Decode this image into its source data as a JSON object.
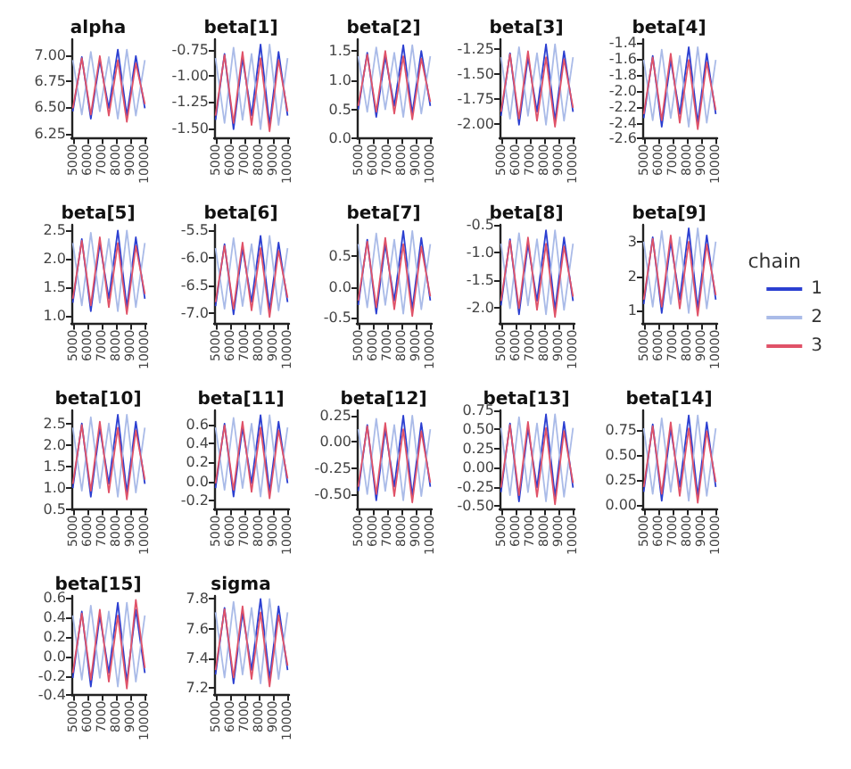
{
  "chart_data": [
    {
      "type": "line",
      "title": "alpha",
      "x": [
        5000,
        5625,
        6250,
        6875,
        7500,
        8125,
        8750,
        9375,
        10000
      ],
      "xlim": [
        4900,
        10100
      ],
      "xticks": [
        5000,
        6000,
        7000,
        8000,
        9000,
        10000
      ],
      "ylim": [
        6.2,
        7.15
      ],
      "yticks": [
        6.25,
        {
          "value": 6.5,
          "label": "6.50"
        },
        6.75,
        {
          "value": 7,
          "label": "7.00"
        }
      ],
      "grid": false,
      "legend": false,
      "series": [
        {
          "color": "#2b3fd1",
          "values": [
            6.46,
            6.98,
            6.39,
            6.95,
            6.49,
            7.05,
            6.42,
            6.99,
            6.49
          ]
        },
        {
          "color": "#aabbe8",
          "values": [
            6.95,
            6.43,
            7.03,
            6.46,
            6.98,
            6.39,
            7.05,
            6.42,
            6.95
          ]
        },
        {
          "color": "#e05268",
          "values": [
            6.49,
            6.97,
            6.43,
            6.99,
            6.42,
            6.95,
            6.36,
            6.92,
            6.53
          ]
        }
      ]
    },
    {
      "type": "line",
      "title": "beta[1]",
      "x": [
        5000,
        5625,
        6250,
        6875,
        7500,
        8125,
        8750,
        9375,
        10000
      ],
      "xlim": [
        4900,
        10100
      ],
      "xticks": [
        5000,
        6000,
        7000,
        8000,
        9000,
        10000
      ],
      "ylim": [
        -1.6,
        -0.65
      ],
      "yticks": [
        {
          "value": -1.5,
          "label": "-1.50"
        },
        -1.25,
        {
          "value": -1,
          "label": "-1.00"
        },
        -0.75
      ],
      "grid": false,
      "legend": false,
      "series": [
        {
          "color": "#2b3fd1",
          "values": [
            -1.42,
            -0.79,
            -1.51,
            -0.83,
            -1.38,
            -0.7,
            -1.47,
            -0.77,
            -1.38
          ]
        },
        {
          "color": "#aabbe8",
          "values": [
            -0.83,
            -1.45,
            -0.73,
            -1.42,
            -0.79,
            -1.51,
            -0.7,
            -1.47,
            -0.83
          ]
        },
        {
          "color": "#e05268",
          "values": [
            -1.38,
            -0.8,
            -1.45,
            -0.77,
            -1.47,
            -0.83,
            -1.53,
            -0.85,
            -1.34
          ]
        }
      ]
    },
    {
      "type": "line",
      "title": "beta[2]",
      "x": [
        5000,
        5625,
        6250,
        6875,
        7500,
        8125,
        8750,
        9375,
        10000
      ],
      "xlim": [
        4900,
        10100
      ],
      "xticks": [
        5000,
        6000,
        7000,
        8000,
        9000,
        10000
      ],
      "ylim": [
        0,
        1.7
      ],
      "yticks": [
        {
          "value": 0,
          "label": "0.0"
        },
        0.5,
        {
          "value": 1,
          "label": "1.0"
        },
        1.5
      ],
      "grid": false,
      "legend": false,
      "series": [
        {
          "color": "#2b3fd1",
          "values": [
            0.5,
            1.47,
            0.37,
            1.41,
            0.56,
            1.6,
            0.43,
            1.5,
            0.56
          ]
        },
        {
          "color": "#aabbe8",
          "values": [
            1.41,
            0.46,
            1.56,
            0.5,
            1.47,
            0.37,
            1.6,
            0.43,
            1.41
          ]
        },
        {
          "color": "#e05268",
          "values": [
            0.56,
            1.44,
            0.46,
            1.5,
            0.43,
            1.41,
            0.33,
            1.37,
            0.63
          ]
        }
      ]
    },
    {
      "type": "line",
      "title": "beta[3]",
      "x": [
        5000,
        5625,
        6250,
        6875,
        7500,
        8125,
        8750,
        9375,
        10000
      ],
      "xlim": [
        4900,
        10100
      ],
      "xticks": [
        5000,
        6000,
        7000,
        8000,
        9000,
        10000
      ],
      "ylim": [
        -2.15,
        -1.15
      ],
      "yticks": [
        {
          "value": -2,
          "label": "-2.00"
        },
        -1.75,
        {
          "value": -1.5,
          "label": "-1.50"
        },
        -1.25
      ],
      "grid": false,
      "legend": false,
      "series": [
        {
          "color": "#2b3fd1",
          "values": [
            -1.92,
            -1.29,
            -2.01,
            -1.33,
            -1.88,
            -1.2,
            -1.97,
            -1.27,
            -1.88
          ]
        },
        {
          "color": "#aabbe8",
          "values": [
            -1.33,
            -1.95,
            -1.23,
            -1.92,
            -1.29,
            -2.01,
            -1.2,
            -1.97,
            -1.33
          ]
        },
        {
          "color": "#e05268",
          "values": [
            -1.88,
            -1.3,
            -1.95,
            -1.27,
            -1.97,
            -1.33,
            -2.03,
            -1.35,
            -1.84
          ]
        }
      ]
    },
    {
      "type": "line",
      "title": "beta[4]",
      "x": [
        5000,
        5625,
        6250,
        6875,
        7500,
        8125,
        8750,
        9375,
        10000
      ],
      "xlim": [
        4900,
        10100
      ],
      "xticks": [
        5000,
        6000,
        7000,
        8000,
        9000,
        10000
      ],
      "ylim": [
        -2.6,
        -1.35
      ],
      "yticks": [
        -2.6,
        -2.4,
        -2.2,
        {
          "value": -2,
          "label": "-2.0"
        },
        -1.8,
        -1.6,
        -1.4
      ],
      "grid": false,
      "legend": false,
      "series": [
        {
          "color": "#2b3fd1",
          "values": [
            -2.34,
            -1.56,
            -2.45,
            -1.61,
            -2.29,
            -1.45,
            -2.4,
            -1.53,
            -2.29
          ]
        },
        {
          "color": "#aabbe8",
          "values": [
            -1.61,
            -2.37,
            -1.48,
            -2.34,
            -1.56,
            -2.45,
            -1.45,
            -2.4,
            -1.61
          ]
        },
        {
          "color": "#e05268",
          "values": [
            -2.29,
            -1.58,
            -2.37,
            -1.53,
            -2.4,
            -1.61,
            -2.48,
            -1.64,
            -2.24
          ]
        }
      ]
    },
    {
      "type": "line",
      "title": "beta[5]",
      "x": [
        5000,
        5625,
        6250,
        6875,
        7500,
        8125,
        8750,
        9375,
        10000
      ],
      "xlim": [
        4900,
        10100
      ],
      "xticks": [
        5000,
        6000,
        7000,
        8000,
        9000,
        10000
      ],
      "ylim": [
        0.85,
        2.6
      ],
      "yticks": [
        {
          "value": 1,
          "label": "1.0"
        },
        1.5,
        {
          "value": 2,
          "label": "2.0"
        },
        2.5
      ],
      "grid": false,
      "legend": false,
      "series": [
        {
          "color": "#2b3fd1",
          "values": [
            1.23,
            2.35,
            1.08,
            2.28,
            1.3,
            2.5,
            1.15,
            2.38,
            1.3
          ]
        },
        {
          "color": "#aabbe8",
          "values": [
            2.28,
            1.18,
            2.46,
            1.23,
            2.35,
            1.08,
            2.5,
            1.15,
            2.28
          ]
        },
        {
          "color": "#e05268",
          "values": [
            1.3,
            2.32,
            1.18,
            2.38,
            1.15,
            2.28,
            1.03,
            2.23,
            1.38
          ]
        }
      ]
    },
    {
      "type": "line",
      "title": "beta[6]",
      "x": [
        5000,
        5625,
        6250,
        6875,
        7500,
        8125,
        8750,
        9375,
        10000
      ],
      "xlim": [
        4900,
        10100
      ],
      "xticks": [
        5000,
        6000,
        7000,
        8000,
        9000,
        10000
      ],
      "ylim": [
        -7.2,
        -5.4
      ],
      "yticks": [
        {
          "value": -7,
          "label": "-7.0"
        },
        -6.5,
        {
          "value": -6,
          "label": "-6.0"
        },
        -5.5
      ],
      "grid": false,
      "legend": false,
      "series": [
        {
          "color": "#2b3fd1",
          "values": [
            -6.87,
            -5.75,
            -7.02,
            -5.82,
            -6.8,
            -5.6,
            -6.95,
            -5.72,
            -6.8
          ]
        },
        {
          "color": "#aabbe8",
          "values": [
            -5.82,
            -6.92,
            -5.64,
            -6.87,
            -5.75,
            -7.02,
            -5.6,
            -6.95,
            -5.82
          ]
        },
        {
          "color": "#e05268",
          "values": [
            -6.8,
            -5.78,
            -6.92,
            -5.72,
            -6.95,
            -5.82,
            -7.07,
            -5.87,
            -6.72
          ]
        }
      ]
    },
    {
      "type": "line",
      "title": "beta[7]",
      "x": [
        5000,
        5625,
        6250,
        6875,
        7500,
        8125,
        8750,
        9375,
        10000
      ],
      "xlim": [
        4900,
        10100
      ],
      "xticks": [
        5000,
        6000,
        7000,
        8000,
        9000,
        10000
      ],
      "ylim": [
        -0.6,
        1.0
      ],
      "yticks": [
        -0.5,
        {
          "value": 0,
          "label": "0.0"
        },
        0.5
      ],
      "grid": false,
      "legend": false,
      "series": [
        {
          "color": "#2b3fd1",
          "values": [
            -0.29,
            0.76,
            -0.43,
            0.69,
            -0.22,
            0.9,
            -0.36,
            0.79,
            -0.22
          ]
        },
        {
          "color": "#aabbe8",
          "values": [
            0.69,
            -0.33,
            0.86,
            -0.29,
            0.76,
            -0.43,
            0.9,
            -0.36,
            0.69
          ]
        },
        {
          "color": "#e05268",
          "values": [
            -0.22,
            0.73,
            -0.33,
            0.79,
            -0.36,
            0.69,
            -0.47,
            0.65,
            -0.15
          ]
        }
      ]
    },
    {
      "type": "line",
      "title": "beta[8]",
      "x": [
        5000,
        5625,
        6250,
        6875,
        7500,
        8125,
        8750,
        9375,
        10000
      ],
      "xlim": [
        4900,
        10100
      ],
      "xticks": [
        5000,
        6000,
        7000,
        8000,
        9000,
        10000
      ],
      "ylim": [
        -2.3,
        -0.5
      ],
      "yticks": [
        {
          "value": -2,
          "label": "-2.0"
        },
        -1.5,
        {
          "value": -1,
          "label": "-1.0"
        },
        -0.5
      ],
      "grid": false,
      "legend": false,
      "series": [
        {
          "color": "#2b3fd1",
          "values": [
            -1.96,
            -0.76,
            -2.12,
            -0.84,
            -1.88,
            -0.6,
            -2.04,
            -0.73,
            -1.88
          ]
        },
        {
          "color": "#aabbe8",
          "values": [
            -0.84,
            -2.01,
            -0.65,
            -1.96,
            -0.76,
            -2.12,
            -0.6,
            -2.04,
            -0.84
          ]
        },
        {
          "color": "#e05268",
          "values": [
            -1.88,
            -0.79,
            -2.01,
            -0.73,
            -2.04,
            -0.84,
            -2.17,
            -0.89,
            -1.8
          ]
        }
      ]
    },
    {
      "type": "line",
      "title": "beta[9]",
      "x": [
        5000,
        5625,
        6250,
        6875,
        7500,
        8125,
        8750,
        9375,
        10000
      ],
      "xlim": [
        4900,
        10100
      ],
      "xticks": [
        5000,
        6000,
        7000,
        8000,
        9000,
        10000
      ],
      "ylim": [
        0.6,
        3.5
      ],
      "yticks": [
        1,
        2,
        3
      ],
      "grid": false,
      "legend": "right",
      "legend_title": "chain",
      "series": [
        {
          "name": "1",
          "color": "#2b3fd1",
          "values": [
            1.19,
            3.14,
            0.93,
            3.01,
            1.32,
            3.4,
            1.06,
            3.19,
            1.32
          ]
        },
        {
          "name": "2",
          "color": "#aabbe8",
          "values": [
            3.01,
            1.11,
            3.32,
            1.19,
            3.14,
            0.93,
            3.4,
            1.06,
            3.01
          ]
        },
        {
          "name": "3",
          "color": "#e05268",
          "values": [
            1.32,
            3.09,
            1.11,
            3.19,
            1.06,
            3.01,
            0.85,
            2.93,
            1.45
          ]
        }
      ]
    },
    {
      "type": "line",
      "title": "beta[10]",
      "x": [
        5000,
        5625,
        6250,
        6875,
        7500,
        8125,
        8750,
        9375,
        10000
      ],
      "xlim": [
        4900,
        10100
      ],
      "xticks": [
        5000,
        6000,
        7000,
        8000,
        9000,
        10000
      ],
      "ylim": [
        0.5,
        2.8
      ],
      "yticks": [
        0.5,
        {
          "value": 1,
          "label": "1.0"
        },
        1.5,
        {
          "value": 2,
          "label": "2.0"
        },
        2.5
      ],
      "grid": false,
      "legend": false,
      "series": [
        {
          "color": "#2b3fd1",
          "values": [
            1.0,
            2.5,
            0.8,
            2.4,
            1.1,
            2.7,
            0.9,
            2.54,
            1.1
          ]
        },
        {
          "color": "#aabbe8",
          "values": [
            2.4,
            0.94,
            2.64,
            1.0,
            2.5,
            0.8,
            2.7,
            0.9,
            2.4
          ]
        },
        {
          "color": "#e05268",
          "values": [
            1.1,
            2.46,
            0.94,
            2.54,
            0.9,
            2.4,
            0.74,
            2.34,
            1.2
          ]
        }
      ]
    },
    {
      "type": "line",
      "title": "beta[11]",
      "x": [
        5000,
        5625,
        6250,
        6875,
        7500,
        8125,
        8750,
        9375,
        10000
      ],
      "xlim": [
        4900,
        10100
      ],
      "xticks": [
        5000,
        6000,
        7000,
        8000,
        9000,
        10000
      ],
      "ylim": [
        -0.3,
        0.75
      ],
      "yticks": [
        -0.2,
        {
          "value": 0,
          "label": "0.0"
        },
        0.2,
        0.4,
        0.6
      ],
      "grid": false,
      "legend": false,
      "series": [
        {
          "color": "#2b3fd1",
          "values": [
            -0.07,
            0.61,
            -0.16,
            0.57,
            -0.02,
            0.7,
            -0.11,
            0.63,
            -0.02
          ]
        },
        {
          "color": "#aabbe8",
          "values": [
            0.57,
            -0.09,
            0.67,
            -0.07,
            0.61,
            -0.16,
            0.7,
            -0.11,
            0.57
          ]
        },
        {
          "color": "#e05268",
          "values": [
            -0.02,
            0.59,
            -0.09,
            0.63,
            -0.11,
            0.57,
            -0.18,
            0.54,
            0.03
          ]
        }
      ]
    },
    {
      "type": "line",
      "title": "beta[12]",
      "x": [
        5000,
        5625,
        6250,
        6875,
        7500,
        8125,
        8750,
        9375,
        10000
      ],
      "xlim": [
        4900,
        10100
      ],
      "xticks": [
        5000,
        6000,
        7000,
        8000,
        9000,
        10000
      ],
      "ylim": [
        -0.65,
        0.3
      ],
      "yticks": [
        {
          "value": -0.5,
          "label": "-0.50"
        },
        -0.25,
        {
          "value": 0,
          "label": "0.00"
        },
        0.25
      ],
      "grid": false,
      "legend": false,
      "series": [
        {
          "color": "#2b3fd1",
          "values": [
            -0.47,
            0.16,
            -0.56,
            0.12,
            -0.43,
            0.25,
            -0.52,
            0.18,
            -0.43
          ]
        },
        {
          "color": "#aabbe8",
          "values": [
            0.12,
            -0.5,
            0.22,
            -0.47,
            0.16,
            -0.56,
            0.25,
            -0.52,
            0.12
          ]
        },
        {
          "color": "#e05268",
          "values": [
            -0.43,
            0.15,
            -0.5,
            0.18,
            -0.52,
            0.12,
            -0.58,
            0.1,
            -0.39
          ]
        }
      ]
    },
    {
      "type": "line",
      "title": "beta[13]",
      "x": [
        5000,
        5625,
        6250,
        6875,
        7500,
        8125,
        8750,
        9375,
        10000
      ],
      "xlim": [
        4900,
        10100
      ],
      "xticks": [
        5000,
        6000,
        7000,
        8000,
        9000,
        10000
      ],
      "ylim": [
        -0.55,
        0.75
      ],
      "yticks": [
        {
          "value": -0.5,
          "label": "-0.50"
        },
        -0.25,
        {
          "value": 0,
          "label": "0.00"
        },
        0.25,
        {
          "value": 0.5,
          "label": "0.50"
        },
        0.75
      ],
      "grid": false,
      "legend": false,
      "series": [
        {
          "color": "#2b3fd1",
          "values": [
            -0.32,
            0.58,
            -0.44,
            0.52,
            -0.26,
            0.7,
            -0.38,
            0.6,
            -0.26
          ]
        },
        {
          "color": "#aabbe8",
          "values": [
            0.52,
            -0.36,
            0.66,
            -0.32,
            0.58,
            -0.44,
            0.7,
            -0.38,
            0.52
          ]
        },
        {
          "color": "#e05268",
          "values": [
            -0.26,
            0.56,
            -0.36,
            0.6,
            -0.38,
            0.52,
            -0.48,
            0.48,
            -0.2
          ]
        }
      ]
    },
    {
      "type": "line",
      "title": "beta[14]",
      "x": [
        5000,
        5625,
        6250,
        6875,
        7500,
        8125,
        8750,
        9375,
        10000
      ],
      "xlim": [
        4900,
        10100
      ],
      "xticks": [
        5000,
        6000,
        7000,
        8000,
        9000,
        10000
      ],
      "ylim": [
        -0.05,
        0.95
      ],
      "yticks": [
        {
          "value": 0,
          "label": "0.00"
        },
        0.25,
        {
          "value": 0.5,
          "label": "0.50"
        },
        0.75
      ],
      "grid": false,
      "legend": false,
      "series": [
        {
          "color": "#2b3fd1",
          "values": [
            0.13,
            0.81,
            0.04,
            0.77,
            0.18,
            0.9,
            0.09,
            0.83,
            0.18
          ]
        },
        {
          "color": "#aabbe8",
          "values": [
            0.77,
            0.11,
            0.87,
            0.13,
            0.81,
            0.04,
            0.9,
            0.09,
            0.77
          ]
        },
        {
          "color": "#e05268",
          "values": [
            0.18,
            0.79,
            0.11,
            0.83,
            0.09,
            0.77,
            0.02,
            0.74,
            0.23
          ]
        }
      ]
    },
    {
      "type": "line",
      "title": "beta[15]",
      "x": [
        5000,
        5625,
        6250,
        6875,
        7500,
        8125,
        8750,
        9375,
        10000
      ],
      "xlim": [
        4900,
        10100
      ],
      "xticks": [
        5000,
        6000,
        7000,
        8000,
        9000,
        10000
      ],
      "ylim": [
        -0.4,
        0.62
      ],
      "yticks": [
        -0.4,
        -0.2,
        {
          "value": 0,
          "label": "0.0"
        },
        0.2,
        0.4,
        0.6
      ],
      "grid": false,
      "legend": false,
      "series": [
        {
          "color": "#2b3fd1",
          "values": [
            -0.22,
            0.46,
            -0.31,
            0.42,
            -0.17,
            0.55,
            -0.26,
            0.48,
            -0.17
          ]
        },
        {
          "color": "#aabbe8",
          "values": [
            0.42,
            -0.24,
            0.52,
            -0.22,
            0.46,
            -0.31,
            0.55,
            -0.26,
            0.42
          ]
        },
        {
          "color": "#e05268",
          "values": [
            -0.17,
            0.44,
            -0.24,
            0.48,
            -0.26,
            0.42,
            -0.33,
            0.58,
            -0.12
          ]
        }
      ]
    },
    {
      "type": "line",
      "title": "sigma",
      "x": [
        5000,
        5625,
        6250,
        6875,
        7500,
        8125,
        8750,
        9375,
        10000
      ],
      "xlim": [
        4900,
        10100
      ],
      "xticks": [
        5000,
        6000,
        7000,
        8000,
        9000,
        10000
      ],
      "ylim": [
        7.15,
        7.82
      ],
      "yticks": [
        7.2,
        7.4,
        7.6,
        7.8
      ],
      "grid": false,
      "legend": false,
      "series": [
        {
          "color": "#2b3fd1",
          "values": [
            7.29,
            7.74,
            7.23,
            7.71,
            7.32,
            7.8,
            7.26,
            7.75,
            7.32
          ]
        },
        {
          "color": "#aabbe8",
          "values": [
            7.71,
            7.27,
            7.78,
            7.29,
            7.74,
            7.23,
            7.8,
            7.26,
            7.71
          ]
        },
        {
          "color": "#e05268",
          "values": [
            7.32,
            7.73,
            7.27,
            7.75,
            7.26,
            7.71,
            7.21,
            7.69,
            7.35
          ]
        }
      ]
    }
  ]
}
